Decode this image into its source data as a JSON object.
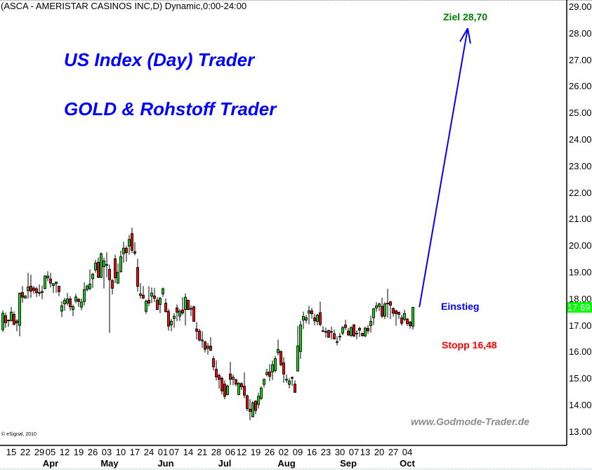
{
  "header": {
    "title": "(ASCA - AMERISTAR CASINOS INC,D) Dynamic,0:00-24:00"
  },
  "promo": {
    "line1": "US Index (Day) Trader",
    "line2": "GOLD & Rohstoff Trader"
  },
  "annotations": {
    "target": "Ziel 28,70",
    "entry": "Einstieg",
    "stop": "Stopp 16,48"
  },
  "watermark": "www.Godmode-Trader.de",
  "copyright": "© eSignal, 2010",
  "colors": {
    "up": "#00e000",
    "down": "#ff0000",
    "arrow": "#0000ff",
    "target": "#008000",
    "entry": "#0000ff",
    "stop": "#ff0000",
    "last_price_bg": "#00ff00"
  },
  "chart_data": {
    "type": "candlestick",
    "symbol": "ASCA",
    "ylim": [
      12.5,
      29.25
    ],
    "yticks": [
      "13.00",
      "14.00",
      "15.00",
      "16.00",
      "17.00",
      "18.00",
      "19.00",
      "20.00",
      "21.00",
      "22.00",
      "23.00",
      "24.00",
      "25.00",
      "26.00",
      "27.00",
      "28.00",
      "29.00"
    ],
    "last_price": "17.69",
    "x_ticks": [
      {
        "label": "15",
        "index": 3
      },
      {
        "label": "22",
        "index": 8
      },
      {
        "label": "29",
        "index": 13
      },
      {
        "label": "05",
        "index": 17
      },
      {
        "label": "12",
        "index": 22
      },
      {
        "label": "19",
        "index": 27
      },
      {
        "label": "26",
        "index": 32
      },
      {
        "label": "03",
        "index": 37
      },
      {
        "label": "10",
        "index": 42
      },
      {
        "label": "17",
        "index": 47
      },
      {
        "label": "24",
        "index": 52
      },
      {
        "label": "01",
        "index": 57
      },
      {
        "label": "07",
        "index": 61
      },
      {
        "label": "14",
        "index": 66
      },
      {
        "label": "21",
        "index": 71
      },
      {
        "label": "28",
        "index": 76
      },
      {
        "label": "06",
        "index": 81
      },
      {
        "label": "12",
        "index": 85
      },
      {
        "label": "19",
        "index": 90
      },
      {
        "label": "26",
        "index": 95
      },
      {
        "label": "02",
        "index": 100
      },
      {
        "label": "09",
        "index": 105
      },
      {
        "label": "16",
        "index": 110
      },
      {
        "label": "23",
        "index": 115
      },
      {
        "label": "30",
        "index": 120
      },
      {
        "label": "07",
        "index": 125
      },
      {
        "label": "13",
        "index": 129
      },
      {
        "label": "20",
        "index": 134
      },
      {
        "label": "27",
        "index": 139
      },
      {
        "label": "04",
        "index": 144
      }
    ],
    "months": [
      {
        "label": "Apr",
        "index": 17
      },
      {
        "label": "May",
        "index": 38
      },
      {
        "label": "Jun",
        "index": 58
      },
      {
        "label": "Jul",
        "index": 79
      },
      {
        "label": "Aug",
        "index": 101
      },
      {
        "label": "Sep",
        "index": 123
      },
      {
        "label": "Oct",
        "index": 144
      }
    ],
    "ohlc_columns": [
      "open",
      "high",
      "low",
      "close"
    ],
    "candles": [
      [
        16.85,
        17.57,
        16.76,
        17.47
      ],
      [
        17.38,
        17.49,
        16.92,
        17.11
      ],
      [
        17.21,
        17.23,
        16.96,
        17.21
      ],
      [
        17.18,
        17.71,
        17.18,
        17.51
      ],
      [
        17.43,
        17.54,
        17.01,
        17.05
      ],
      [
        17.18,
        17.25,
        16.79,
        17.11
      ],
      [
        17.01,
        18.24,
        16.6,
        18.23
      ],
      [
        18.25,
        18.49,
        17.87,
        18.07
      ],
      [
        18.04,
        18.15,
        18.02,
        18.12
      ],
      [
        18.32,
        18.99,
        18.02,
        18.46
      ],
      [
        18.49,
        18.92,
        18.05,
        18.3
      ],
      [
        18.42,
        18.49,
        18.2,
        18.33
      ],
      [
        18.39,
        18.46,
        18.08,
        18.24
      ],
      [
        18.23,
        18.55,
        18.11,
        18.25
      ],
      [
        18.25,
        18.51,
        18.0,
        18.29
      ],
      [
        18.4,
        18.9,
        18.37,
        18.87
      ],
      [
        18.8,
        19.05,
        18.68,
        18.87
      ],
      [
        18.76,
        18.99,
        18.44,
        18.6
      ],
      [
        18.51,
        18.61,
        18.23,
        18.58
      ],
      [
        18.58,
        18.67,
        18.24,
        18.64
      ],
      [
        18.49,
        18.49,
        18.11,
        18.28
      ],
      [
        17.55,
        17.93,
        17.32,
        17.75
      ],
      [
        17.82,
        18.05,
        17.56,
        17.96
      ],
      [
        17.85,
        18.23,
        17.76,
        18.01
      ],
      [
        18.01,
        18.11,
        17.56,
        17.71
      ],
      [
        17.61,
        17.8,
        17.36,
        17.72
      ],
      [
        17.93,
        18.2,
        17.85,
        18.08
      ],
      [
        18.0,
        18.02,
        17.7,
        17.91
      ],
      [
        17.7,
        18.02,
        17.58,
        17.89
      ],
      [
        17.91,
        18.64,
        17.76,
        18.36
      ],
      [
        18.36,
        18.55,
        18.29,
        18.49
      ],
      [
        18.4,
        19.12,
        18.33,
        18.57
      ],
      [
        18.77,
        18.99,
        18.42,
        18.94
      ],
      [
        19.1,
        19.48,
        18.99,
        19.36
      ],
      [
        19.39,
        19.57,
        18.79,
        18.82
      ],
      [
        18.82,
        19.76,
        18.79,
        19.71
      ],
      [
        19.22,
        19.57,
        18.4,
        19.44
      ],
      [
        19.3,
        19.76,
        18.82,
        19.3
      ],
      [
        19.12,
        19.3,
        16.73,
        18.73
      ],
      [
        18.7,
        18.77,
        18.18,
        18.41
      ],
      [
        19.52,
        19.67,
        18.6,
        18.8
      ],
      [
        18.6,
        19.34,
        18.58,
        19.01
      ],
      [
        19.04,
        19.83,
        18.99,
        19.6
      ],
      [
        19.71,
        20.16,
        19.37,
        19.92
      ],
      [
        19.92,
        20.01,
        19.41,
        19.75
      ],
      [
        20.0,
        20.42,
        19.67,
        20.25
      ],
      [
        20.47,
        20.69,
        19.74,
        19.84
      ],
      [
        19.79,
        20.14,
        19.65,
        19.73
      ],
      [
        19.19,
        19.52,
        18.28,
        18.48
      ],
      [
        18.14,
        18.6,
        18.02,
        18.2
      ],
      [
        18.15,
        18.49,
        18.0,
        18.04
      ],
      [
        17.54,
        17.98,
        17.45,
        17.92
      ],
      [
        17.96,
        18.49,
        17.73,
        17.85
      ],
      [
        18.11,
        18.44,
        17.85,
        18.23
      ],
      [
        18.12,
        18.42,
        17.89,
        18.03
      ],
      [
        17.96,
        18.07,
        17.61,
        17.61
      ],
      [
        17.8,
        18.08,
        17.47,
        18.04
      ],
      [
        18.2,
        18.44,
        18.08,
        18.39
      ],
      [
        17.85,
        18.02,
        17.49,
        17.53
      ],
      [
        17.54,
        17.63,
        16.81,
        16.98
      ],
      [
        17.03,
        17.25,
        16.79,
        17.17
      ],
      [
        17.27,
        17.47,
        16.92,
        17.36
      ],
      [
        17.67,
        17.8,
        17.17,
        17.51
      ],
      [
        17.36,
        17.63,
        17.18,
        17.55
      ],
      [
        17.59,
        18.07,
        17.4,
        17.48
      ],
      [
        17.61,
        18.22,
        17.01,
        18.07
      ],
      [
        17.96,
        17.98,
        17.58,
        17.61
      ],
      [
        17.65,
        17.76,
        17.36,
        17.65
      ],
      [
        17.71,
        17.76,
        17.16,
        17.16
      ],
      [
        16.88,
        17.14,
        16.48,
        16.79
      ],
      [
        16.8,
        16.88,
        16.41,
        16.46
      ],
      [
        16.46,
        16.79,
        16.17,
        16.46
      ],
      [
        16.39,
        16.43,
        15.99,
        16.11
      ],
      [
        16.15,
        16.35,
        15.91,
        16.23
      ],
      [
        16.23,
        16.57,
        16.04,
        16.08
      ],
      [
        15.76,
        15.86,
        15.31,
        15.45
      ],
      [
        15.36,
        15.69,
        14.94,
        15.07
      ],
      [
        15.13,
        15.2,
        14.63,
        14.98
      ],
      [
        15.02,
        15.09,
        14.41,
        14.54
      ],
      [
        14.8,
        14.94,
        14.23,
        14.34
      ],
      [
        14.41,
        14.78,
        14.38,
        14.73
      ],
      [
        15.18,
        15.64,
        14.76,
        14.98
      ],
      [
        14.98,
        15.16,
        14.76,
        15.06
      ],
      [
        14.96,
        15.02,
        14.72,
        14.8
      ],
      [
        14.41,
        14.87,
        14.38,
        14.83
      ],
      [
        14.82,
        14.87,
        14.58,
        14.7
      ],
      [
        14.72,
        15.24,
        14.27,
        14.38
      ],
      [
        14.36,
        14.41,
        13.79,
        13.88
      ],
      [
        13.86,
        14.23,
        13.44,
        13.77
      ],
      [
        13.57,
        14.17,
        13.55,
        14.1
      ],
      [
        14.16,
        14.2,
        13.67,
        13.81
      ],
      [
        14.03,
        14.47,
        13.88,
        14.34
      ],
      [
        14.26,
        14.72,
        14.2,
        14.65
      ],
      [
        14.79,
        15.01,
        14.67,
        14.98
      ],
      [
        15.16,
        15.38,
        15.09,
        15.24
      ],
      [
        15.26,
        15.55,
        14.91,
        15.09
      ],
      [
        15.26,
        15.69,
        14.96,
        15.53
      ],
      [
        15.31,
        15.86,
        15.24,
        15.76
      ],
      [
        15.98,
        16.48,
        15.88,
        16.11
      ],
      [
        16.03,
        16.06,
        15.47,
        15.53
      ],
      [
        15.6,
        15.82,
        14.85,
        15.18
      ],
      [
        14.98,
        15.16,
        14.85,
        14.98
      ],
      [
        14.79,
        15.02,
        14.64,
        14.92
      ],
      [
        15.05,
        15.09,
        14.73,
        15.05
      ],
      [
        14.8,
        14.94,
        14.47,
        14.49
      ],
      [
        15.29,
        16.99,
        15.29,
        16.24
      ],
      [
        16.03,
        17.18,
        15.75,
        17.03
      ],
      [
        17.21,
        17.53,
        16.87,
        17.35
      ],
      [
        17.21,
        17.4,
        17.09,
        17.3
      ],
      [
        17.47,
        17.75,
        17.05,
        17.56
      ],
      [
        17.56,
        17.67,
        17.27,
        17.45
      ],
      [
        17.3,
        17.45,
        17.02,
        17.18
      ],
      [
        17.16,
        17.45,
        17.02,
        17.4
      ],
      [
        17.49,
        17.91,
        16.98,
        17.05
      ],
      [
        16.81,
        16.98,
        16.76,
        16.81
      ],
      [
        16.78,
        16.93,
        16.55,
        16.78
      ],
      [
        16.82,
        16.85,
        16.56,
        16.56
      ],
      [
        16.78,
        16.96,
        16.48,
        16.78
      ],
      [
        16.7,
        16.85,
        16.48,
        16.5
      ],
      [
        16.4,
        16.61,
        16.26,
        16.4
      ],
      [
        16.6,
        16.72,
        16.43,
        16.6
      ],
      [
        16.72,
        16.99,
        16.65,
        16.93
      ],
      [
        17.03,
        17.22,
        16.83,
        16.93
      ],
      [
        16.8,
        16.92,
        16.61,
        16.65
      ],
      [
        16.63,
        16.98,
        16.58,
        16.93
      ],
      [
        17.03,
        17.07,
        16.58,
        16.61
      ],
      [
        16.72,
        16.83,
        16.49,
        16.72
      ],
      [
        16.9,
        16.96,
        16.58,
        16.83
      ],
      [
        16.71,
        16.74,
        16.58,
        16.63
      ],
      [
        16.61,
        16.96,
        16.58,
        16.91
      ],
      [
        16.9,
        17.03,
        16.7,
        16.81
      ],
      [
        17.0,
        17.38,
        16.74,
        17.16
      ],
      [
        17.3,
        17.67,
        17.02,
        17.64
      ],
      [
        17.67,
        17.89,
        17.53,
        17.75
      ],
      [
        17.73,
        17.87,
        17.55,
        17.82
      ],
      [
        17.73,
        18.05,
        17.29,
        17.36
      ],
      [
        17.36,
        17.89,
        17.25,
        17.82
      ],
      [
        17.85,
        18.39,
        17.31,
        17.85
      ],
      [
        17.9,
        17.93,
        17.25,
        17.77
      ],
      [
        17.65,
        17.69,
        17.34,
        17.47
      ],
      [
        17.56,
        17.6,
        17.0,
        17.45
      ],
      [
        17.51,
        17.53,
        17.25,
        17.43
      ],
      [
        17.3,
        17.42,
        17.0,
        17.09
      ],
      [
        17.24,
        17.6,
        17.16,
        17.46
      ],
      [
        17.25,
        17.29,
        16.99,
        17.08
      ],
      [
        17.14,
        17.18,
        16.89,
        17.0
      ],
      [
        16.98,
        17.71,
        16.85,
        17.69
      ]
    ],
    "projection_arrow": {
      "from": {
        "index": 148.3,
        "price": 17.7
      },
      "to": {
        "index": 165.5,
        "price": 28.2
      }
    }
  }
}
